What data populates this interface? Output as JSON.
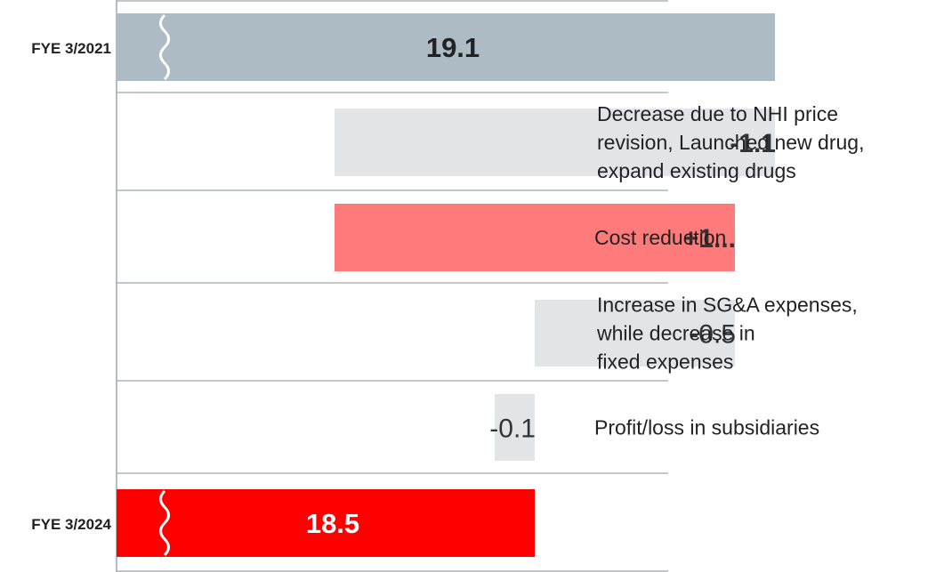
{
  "chart_data": {
    "type": "waterfall",
    "orientation": "horizontal",
    "axis_break": true,
    "xlim": [
      0,
      20
    ],
    "grid": true,
    "legend": "none",
    "rows": [
      {
        "id": "start",
        "kind": "total",
        "label": "FYE 3/2021",
        "value": 19.1,
        "display": "19.1",
        "color": "#adbcc4",
        "text_color": "#222222"
      },
      {
        "id": "d1",
        "kind": "delta",
        "label": "",
        "value": -1.1,
        "display": "-1.1",
        "bold": true,
        "color": "#e1e5e8",
        "annotation": [
          "Decrease due to NHI price",
          "revision, Launched new drug,",
          "expand existing drugs"
        ]
      },
      {
        "id": "d2",
        "kind": "delta",
        "label": "",
        "value": 1.0,
        "display": "+1...",
        "bold": true,
        "color": "#ff7b7b",
        "annotation": [
          "Cost reduction"
        ]
      },
      {
        "id": "d3",
        "kind": "delta",
        "label": "",
        "value": -0.5,
        "display": "-0.5",
        "bold": false,
        "color": "#e1e5e8",
        "annotation": [
          "Increase in SG&A expenses,",
          "while decrease in",
          "fixed expenses"
        ]
      },
      {
        "id": "d4",
        "kind": "delta",
        "label": "",
        "value": -0.1,
        "display": "-0.1",
        "bold": false,
        "color": "#e1e5e8",
        "annotation": [
          "Profit/loss in subsidiaries"
        ]
      },
      {
        "id": "end",
        "kind": "total",
        "label": "FYE 3/2024",
        "value": 18.5,
        "display": "18.5",
        "color": "#ff0000",
        "text_color": "#ffffff"
      }
    ]
  }
}
